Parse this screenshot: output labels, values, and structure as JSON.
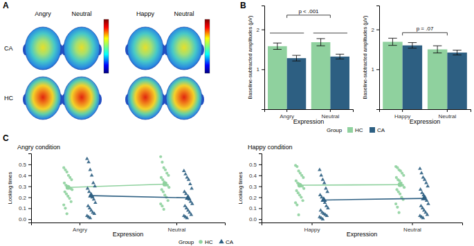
{
  "figure": {
    "panel_labels": [
      "A",
      "B",
      "C"
    ]
  },
  "topomaps": {
    "rows": [
      "CA",
      "HC"
    ],
    "columns": [
      "Angry",
      "Neutral",
      "Happy",
      "Neutral"
    ]
  },
  "chart_data": [
    {
      "type": "bar",
      "categories": [
        "Angry",
        "Neutral"
      ],
      "x_label": "Expression",
      "y_label": "Baseline-subtracted amplitudes (µV)",
      "ylim": [
        0,
        2.6
      ],
      "yticks": [
        1,
        2
      ],
      "grid": false,
      "legend": "bottom",
      "legend_title": "Group",
      "series": [
        {
          "name": "HC",
          "color": "#8fd19e",
          "values": [
            1.58,
            1.68
          ],
          "errors": [
            0.08,
            0.09
          ]
        },
        {
          "name": "CA",
          "color": "#2d5f82",
          "values": [
            1.28,
            1.32
          ],
          "errors": [
            0.07,
            0.06
          ]
        }
      ],
      "annotations": [
        {
          "text": "p < .001"
        }
      ]
    },
    {
      "type": "bar",
      "categories": [
        "Happy",
        "Neutral"
      ],
      "x_label": "Expression",
      "y_label": "Baseline-subtracted amplitudes (µV)",
      "ylim": [
        0,
        2.6
      ],
      "yticks": [
        1,
        2
      ],
      "grid": false,
      "series": [
        {
          "name": "HC",
          "color": "#8fd19e",
          "values": [
            1.69,
            1.5
          ],
          "errors": [
            0.09,
            0.09
          ]
        },
        {
          "name": "CA",
          "color": "#2d5f82",
          "values": [
            1.6,
            1.42
          ],
          "errors": [
            0.07,
            0.06
          ]
        }
      ],
      "annotations": [
        {
          "text": "p = .07"
        }
      ]
    },
    {
      "type": "scatter",
      "title": "Angry condition",
      "categories": [
        "Angry",
        "Neutral"
      ],
      "x_label": "Expression",
      "y_label": "Looking times",
      "ylim": [
        -0.03,
        0.6
      ],
      "yticks": [
        {
          "value": 0,
          "label": "0.0"
        },
        0.1,
        0.2,
        0.3,
        0.4,
        0.5
      ],
      "grid": false,
      "legend": "bottom",
      "legend_title": "Group",
      "series": [
        {
          "name": "HC",
          "color": "#8fd19e",
          "marker": "circle",
          "points": [
            [
              0.47,
              0.45,
              0.43,
              0.4,
              0.38,
              0.36,
              0.33,
              0.31,
              0.3,
              0.29,
              0.28,
              0.27,
              0.25,
              0.23,
              0.21,
              0.19,
              0.16,
              0.13,
              0.1,
              0.05
            ],
            [
              0.57,
              0.52,
              0.47,
              0.45,
              0.42,
              0.4,
              0.38,
              0.36,
              0.34,
              0.33,
              0.31,
              0.29,
              0.27,
              0.25,
              0.22,
              0.2,
              0.17,
              0.14,
              0.12,
              0.09
            ]
          ],
          "means": [
            0.29,
            0.32
          ]
        },
        {
          "name": "CA",
          "color": "#2d5f82",
          "marker": "triangle",
          "points": [
            [
              0.55,
              0.52,
              0.45,
              0.4,
              0.33,
              0.3,
              0.28,
              0.25,
              0.22,
              0.2,
              0.18,
              0.15,
              0.12,
              0.1,
              0.08,
              0.06,
              0.05,
              0.03,
              0.02,
              0.01
            ],
            [
              0.44,
              0.41,
              0.38,
              0.36,
              0.32,
              0.28,
              0.25,
              0.23,
              0.2,
              0.18,
              0.16,
              0.14,
              0.12,
              0.1,
              0.08,
              0.06,
              0.04,
              0.03,
              0.02,
              0.01
            ]
          ],
          "means": [
            0.215,
            0.195
          ]
        }
      ]
    },
    {
      "type": "scatter",
      "title": "Happy condition",
      "categories": [
        "Happy",
        "Neutral"
      ],
      "x_label": "Expression",
      "y_label": "Looking times",
      "ylim": [
        -0.03,
        0.6
      ],
      "yticks": [
        {
          "value": 0,
          "label": "0.0"
        },
        0.1,
        0.2,
        0.3,
        0.4,
        0.5
      ],
      "grid": false,
      "series": [
        {
          "name": "HC",
          "color": "#8fd19e",
          "marker": "circle",
          "points": [
            [
              0.49,
              0.48,
              0.44,
              0.42,
              0.4,
              0.38,
              0.35,
              0.33,
              0.32,
              0.31,
              0.3,
              0.28,
              0.26,
              0.24,
              0.22,
              0.2,
              0.17,
              0.15,
              0.13,
              0.04
            ],
            [
              0.48,
              0.47,
              0.45,
              0.44,
              0.42,
              0.4,
              0.38,
              0.36,
              0.35,
              0.33,
              0.31,
              0.29,
              0.27,
              0.25,
              0.23,
              0.2,
              0.18,
              0.14,
              0.11,
              0.06
            ]
          ],
          "means": [
            0.31,
            0.315
          ]
        },
        {
          "name": "CA",
          "color": "#2d5f82",
          "marker": "triangle",
          "points": [
            [
              0.45,
              0.4,
              0.36,
              0.33,
              0.28,
              0.25,
              0.22,
              0.2,
              0.18,
              0.15,
              0.12,
              0.1,
              0.08,
              0.06,
              0.05,
              0.04,
              0.03,
              0.02,
              0.01,
              0.0
            ],
            [
              0.46,
              0.42,
              0.38,
              0.36,
              0.33,
              0.3,
              0.27,
              0.24,
              0.22,
              0.2,
              0.17,
              0.14,
              0.12,
              0.1,
              0.08,
              0.06,
              0.04,
              0.03,
              0.02,
              0.01
            ]
          ],
          "means": [
            0.175,
            0.19
          ]
        }
      ]
    }
  ]
}
